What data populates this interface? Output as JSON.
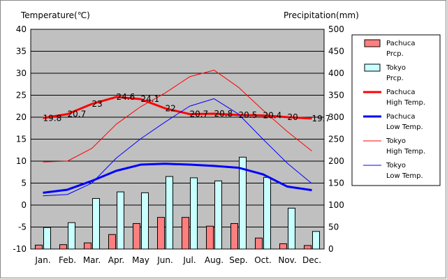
{
  "chart_data": {
    "type": "bar",
    "title_left": "Temperature(℃)",
    "title_right": "Precipitation(mm)",
    "categories": [
      "Jan.",
      "Feb.",
      "Mar.",
      "Apr.",
      "May",
      "Jun.",
      "Jul.",
      "Aug.",
      "Sep.",
      "Oct.",
      "Nov.",
      "Dec."
    ],
    "y_left": {
      "min": -10,
      "max": 40,
      "step": 5
    },
    "y_right": {
      "min": 0,
      "max": 500,
      "step": 50
    },
    "grid": true,
    "legend_position": "right",
    "series": [
      {
        "name": "Pachuca Prcp.",
        "legend_lines": [
          "Pachuca",
          "Prcp."
        ],
        "kind": "bar",
        "axis": "right",
        "color": "#ff7f7f",
        "values": [
          9,
          10,
          14,
          33,
          58,
          72,
          72,
          52,
          58,
          25,
          12,
          8
        ]
      },
      {
        "name": "Tokyo Prcp.",
        "legend_lines": [
          "Tokyo",
          "Prcp."
        ],
        "kind": "bar",
        "axis": "right",
        "color": "#c8ffff",
        "values": [
          49,
          60,
          115,
          130,
          128,
          165,
          162,
          155,
          209,
          163,
          93,
          40
        ]
      },
      {
        "name": "Pachuca High Temp.",
        "legend_lines": [
          "Pachuca",
          "High Temp."
        ],
        "kind": "line",
        "axis": "left",
        "color": "#ff0000",
        "width": 3,
        "values": [
          19.8,
          20.7,
          23,
          24.6,
          24.1,
          22,
          20.7,
          20.8,
          20.5,
          20.4,
          20,
          19.7
        ],
        "labels": [
          "19.8",
          "20.7",
          "23",
          "24.6",
          "24.1",
          "22",
          "20.7",
          "20.8",
          "20.5",
          "20.4",
          "20",
          "19.7"
        ]
      },
      {
        "name": "Pachuca Low Temp.",
        "legend_lines": [
          "Pachuca",
          "Low Temp."
        ],
        "kind": "line",
        "axis": "left",
        "color": "#0000ff",
        "width": 3,
        "values": [
          2.8,
          3.5,
          5.5,
          7.8,
          9.2,
          9.4,
          9.2,
          8.9,
          8.5,
          7,
          4.2,
          3.4
        ]
      },
      {
        "name": "Tokyo High Temp.",
        "legend_lines": [
          "Tokyo",
          "High Temp."
        ],
        "kind": "line",
        "axis": "left",
        "color": "#ff0000",
        "width": 1,
        "values": [
          9.8,
          10,
          12.9,
          18.4,
          22.4,
          25.5,
          29.2,
          30.7,
          26.8,
          21.6,
          16.7,
          12.3
        ]
      },
      {
        "name": "Tokyo Low Temp.",
        "legend_lines": [
          "Tokyo",
          "Low Temp."
        ],
        "kind": "line",
        "axis": "left",
        "color": "#0000ff",
        "width": 1,
        "values": [
          2.1,
          2.4,
          5,
          10.7,
          15.1,
          18.9,
          22.5,
          24.2,
          20.7,
          15,
          9.5,
          4.9
        ]
      }
    ]
  }
}
